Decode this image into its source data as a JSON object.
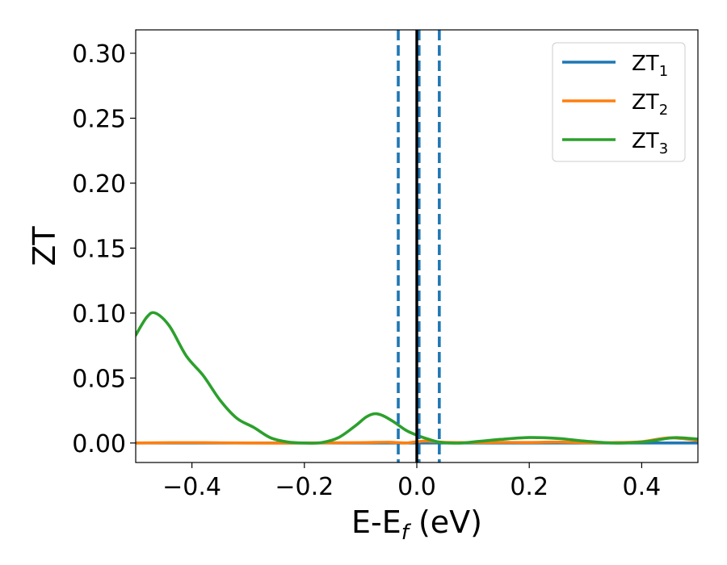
{
  "chart_data": {
    "type": "line",
    "xlabel": "E-E",
    "xlabel_sub": "f",
    "xlabel_unit": " (eV)",
    "ylabel": "ZT",
    "xlim": [
      -0.5,
      0.5
    ],
    "ylim": [
      -0.015,
      0.318
    ],
    "x_ticks": [
      -0.4,
      -0.2,
      0.0,
      0.2,
      0.4
    ],
    "x_tick_labels": [
      "−0.4",
      "−0.2",
      "0.0",
      "0.2",
      "0.4"
    ],
    "y_ticks": [
      0.0,
      0.05,
      0.1,
      0.15,
      0.2,
      0.25,
      0.3
    ],
    "y_tick_labels": [
      "0.00",
      "0.05",
      "0.10",
      "0.15",
      "0.20",
      "0.25",
      "0.30"
    ],
    "grid": false,
    "legend_position": "top-right",
    "vlines": [
      {
        "x": -0.033,
        "style": "dashed",
        "color": "#1f77b4"
      },
      {
        "x": 0.004,
        "style": "dashed",
        "color": "#1f77b4"
      },
      {
        "x": 0.04,
        "style": "dashed",
        "color": "#1f77b4"
      },
      {
        "x": 0.0,
        "style": "solid",
        "color": "#000000"
      }
    ],
    "series": [
      {
        "name": "ZT",
        "subscript": "1",
        "color": "#1f77b4",
        "x": [
          -0.5,
          0.0,
          0.5
        ],
        "y": [
          0.0,
          0.0,
          0.0
        ]
      },
      {
        "name": "ZT",
        "subscript": "2",
        "color": "#ff7f0e",
        "x": [
          -0.5,
          -0.4,
          -0.3,
          -0.2,
          -0.1,
          -0.05,
          -0.02,
          0.0,
          0.02,
          0.05,
          0.1,
          0.15,
          0.2,
          0.25,
          0.3,
          0.35,
          0.4,
          0.45,
          0.5
        ],
        "y": [
          0.0,
          0.0003,
          0.0,
          0.0,
          0.0003,
          0.0006,
          0.0,
          0.001,
          0.0015,
          0.0005,
          0.0003,
          0.0005,
          0.0004,
          0.0007,
          0.0002,
          0.0003,
          0.001,
          0.004,
          0.002
        ]
      },
      {
        "name": "ZT",
        "subscript": "3",
        "color": "#2ca02c",
        "x": [
          -0.5,
          -0.48,
          -0.465,
          -0.44,
          -0.41,
          -0.38,
          -0.35,
          -0.32,
          -0.29,
          -0.26,
          -0.23,
          -0.2,
          -0.17,
          -0.14,
          -0.11,
          -0.09,
          -0.075,
          -0.06,
          -0.04,
          -0.02,
          0.0,
          0.02,
          0.04,
          0.06,
          0.08,
          0.1,
          0.15,
          0.2,
          0.25,
          0.3,
          0.35,
          0.4,
          0.45,
          0.47,
          0.5
        ],
        "y": [
          0.083,
          0.097,
          0.1,
          0.09,
          0.067,
          0.052,
          0.033,
          0.019,
          0.012,
          0.004,
          0.0008,
          0.0,
          0.0003,
          0.004,
          0.013,
          0.02,
          0.0225,
          0.021,
          0.016,
          0.01,
          0.006,
          0.003,
          0.0006,
          0.0,
          0.0,
          0.0008,
          0.0028,
          0.0042,
          0.0035,
          0.0014,
          0.0,
          0.0007,
          0.0038,
          0.004,
          0.003
        ]
      }
    ]
  }
}
